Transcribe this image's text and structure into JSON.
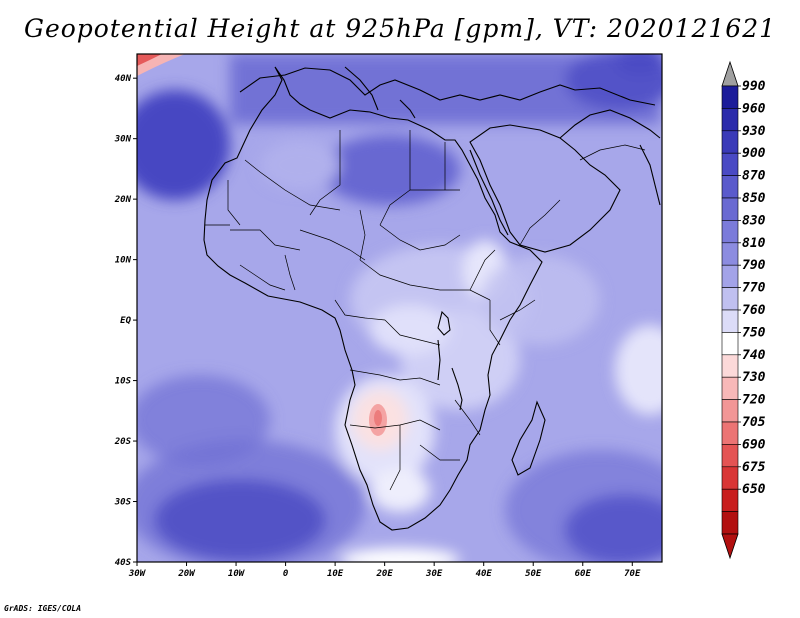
{
  "title": "Geopotential Height at 925hPa [gpm], VT: 2020121621",
  "credit": "GrADS: IGES/COLA",
  "map": {
    "lat_labels": [
      "40N",
      "30N",
      "20N",
      "10N",
      "EQ",
      "10S",
      "20S",
      "30S",
      "40S"
    ],
    "lon_labels": [
      "30W",
      "20W",
      "10W",
      "0",
      "10E",
      "20E",
      "30E",
      "40E",
      "50E",
      "60E",
      "70E"
    ],
    "lat_range": [
      -40,
      44
    ],
    "lon_range": [
      -30,
      76
    ]
  },
  "colorbar": {
    "levels": [
      "990",
      "960",
      "930",
      "900",
      "870",
      "850",
      "830",
      "810",
      "790",
      "770",
      "760",
      "750",
      "740",
      "730",
      "720",
      "705",
      "690",
      "675",
      "650"
    ],
    "colors": [
      "#1c1c9a",
      "#2b2bab",
      "#3a3ab8",
      "#4a4ac4",
      "#5a5acc",
      "#6a6ad2",
      "#7b7bda",
      "#8c8ce0",
      "#a3a3e8",
      "#c0c0f0",
      "#dcdcf8",
      "#ffffff",
      "#fcd9d9",
      "#f8b8b8",
      "#f29696",
      "#ec7474",
      "#e45454",
      "#d93636",
      "#c81e1e",
      "#b21010"
    ],
    "top_arrow_color": "#a0a0a0",
    "bottom_arrow_color": "#b21010"
  }
}
